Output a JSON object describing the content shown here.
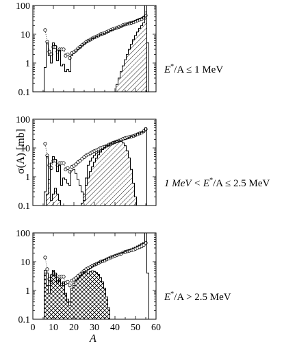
{
  "figure": {
    "ylabel": "σ(A) [mb]",
    "xlabel": "A",
    "colors": {
      "line": "#000000",
      "marker_fill": "#ffffff",
      "hatch": "#000000",
      "background": "#ffffff"
    }
  },
  "chart_data": [
    {
      "type": "line",
      "panel": "top",
      "annotation": {
        "prefix": "E",
        "sup": "*",
        "body": "/A ≤ 1 MeV"
      },
      "ylim": [
        0.1,
        100
      ],
      "yscale": "log",
      "yticks": [
        "0.1",
        "1",
        "10",
        "100"
      ],
      "xlim": [
        0,
        60
      ],
      "series": [
        {
          "style": "markers-dotted",
          "x": [
            6,
            7,
            8,
            9,
            10,
            11,
            12,
            13,
            14,
            15,
            16,
            17,
            18,
            19,
            20,
            21,
            22,
            23,
            24,
            25,
            26,
            27,
            28,
            29,
            30,
            31,
            32,
            33,
            34,
            35,
            36,
            37,
            38,
            39,
            40,
            41,
            42,
            43,
            44,
            45,
            46,
            47,
            48,
            49,
            50,
            51,
            52,
            53,
            54,
            55
          ],
          "values": [
            14,
            5.5,
            2.5,
            2.0,
            3.6,
            3.6,
            2.5,
            3.0,
            3.0,
            3.0,
            1.8,
            2.0,
            1.5,
            2.2,
            2.4,
            2.7,
            3.2,
            3.6,
            4.2,
            4.8,
            5.5,
            6.0,
            6.5,
            7.2,
            7.8,
            8.4,
            9.0,
            10,
            10.5,
            11,
            12,
            13,
            14,
            15,
            16,
            17,
            18,
            19,
            21,
            22,
            23,
            24,
            25,
            26,
            28,
            30,
            32,
            34,
            38,
            45
          ]
        },
        {
          "style": "histogram",
          "x": [
            6,
            7,
            8,
            9,
            10,
            11,
            12,
            13,
            14,
            15,
            16,
            17,
            18,
            19,
            20,
            21,
            22,
            23,
            24,
            25,
            26,
            27,
            28,
            29,
            30,
            31,
            32,
            33,
            34,
            35,
            36,
            37,
            38,
            39,
            40,
            41,
            42,
            43,
            44,
            45,
            46,
            47,
            48,
            49,
            50,
            51,
            52,
            53,
            54,
            55,
            56
          ],
          "values": [
            0.7,
            5,
            1.8,
            1.0,
            5,
            4,
            1.2,
            2.8,
            0.8,
            0.9,
            0.5,
            0.6,
            0.5,
            1.8,
            2.2,
            2.6,
            3.0,
            3.4,
            4.0,
            4.6,
            5.2,
            5.8,
            6.4,
            7.0,
            7.6,
            8.2,
            8.8,
            9.6,
            10.2,
            10.8,
            11.6,
            12.5,
            13.5,
            14.5,
            15.5,
            16.5,
            17.5,
            18.5,
            20,
            21.5,
            23,
            24.5,
            26,
            28,
            30,
            32,
            34,
            36,
            40,
            100,
            5
          ]
        },
        {
          "style": "hatched",
          "x": [
            40,
            41,
            42,
            43,
            44,
            45,
            46,
            47,
            48,
            49,
            50,
            51,
            52,
            53,
            54,
            55,
            56
          ],
          "values": [
            0.1,
            0.18,
            0.3,
            0.5,
            0.8,
            1.3,
            2.0,
            3.0,
            4.5,
            6.5,
            9,
            12,
            16,
            20,
            25,
            60,
            0.1
          ]
        }
      ]
    },
    {
      "type": "line",
      "panel": "middle",
      "annotation": {
        "prefix": "1 MeV < E",
        "sup": "*",
        "body": "/A ≤ 2.5 MeV"
      },
      "ylim": [
        0.1,
        100
      ],
      "yscale": "log",
      "yticks": [
        "0.1",
        "1",
        "10",
        "100"
      ],
      "xlim": [
        0,
        60
      ],
      "series": [
        {
          "style": "markers-dotted",
          "x": [
            6,
            7,
            8,
            9,
            10,
            11,
            12,
            13,
            14,
            15,
            16,
            17,
            18,
            19,
            20,
            21,
            22,
            23,
            24,
            25,
            26,
            27,
            28,
            29,
            30,
            31,
            32,
            33,
            34,
            35,
            36,
            37,
            38,
            39,
            40,
            41,
            42,
            43,
            44,
            45,
            46,
            47,
            48,
            49,
            50,
            51,
            52,
            53,
            54,
            55
          ],
          "values": [
            14,
            5.5,
            2.5,
            2.0,
            3.6,
            3.6,
            2.5,
            3.0,
            3.0,
            3.0,
            1.8,
            2.0,
            1.5,
            2.2,
            2.4,
            2.7,
            3.2,
            3.6,
            4.2,
            4.8,
            5.5,
            6.0,
            6.5,
            7.2,
            7.8,
            8.4,
            9.0,
            10,
            10.5,
            11,
            12,
            13,
            14,
            15,
            16,
            17,
            18,
            19,
            21,
            22,
            23,
            24,
            25,
            26,
            28,
            30,
            32,
            34,
            38,
            45
          ]
        },
        {
          "style": "histogram",
          "x": [
            6,
            7,
            8,
            9,
            10,
            11,
            12,
            13,
            14,
            15,
            16,
            17,
            18,
            19,
            20,
            21,
            22,
            23,
            24,
            25,
            26,
            27,
            28,
            29,
            30,
            31,
            32,
            33,
            34,
            35,
            36,
            37,
            38,
            39,
            40,
            41,
            42,
            43,
            44,
            45,
            46,
            47,
            48,
            49,
            50,
            51,
            52,
            53,
            54,
            55,
            56
          ],
          "values": [
            0.3,
            5,
            0.8,
            3.0,
            5,
            4,
            1.5,
            2.5,
            0.5,
            0.9,
            0.8,
            0.6,
            0.5,
            1.6,
            1.8,
            1.3,
            0.8,
            0.5,
            0.3,
            0.15,
            0.9,
            2.5,
            3.5,
            4.5,
            5.5,
            6.5,
            7.2,
            8.0,
            9.0,
            10,
            11,
            12,
            13,
            14,
            15,
            16,
            17,
            18,
            19,
            20,
            21,
            23,
            25,
            26,
            28,
            31,
            33,
            35,
            38,
            50,
            0.1
          ]
        },
        {
          "style": "hatched",
          "x": [
            6,
            7,
            8,
            9,
            10,
            11,
            12,
            13,
            14,
            15,
            16,
            17,
            18,
            19,
            20,
            21,
            22,
            23,
            24,
            25,
            26,
            27,
            28,
            29,
            30,
            31,
            32,
            33,
            34,
            35,
            36,
            37,
            38,
            39,
            40,
            41,
            42,
            43,
            44,
            45,
            46,
            47,
            48,
            49,
            50,
            51
          ],
          "values": [
            0.1,
            0.25,
            0.8,
            0.15,
            0.25,
            0.4,
            0.25,
            0.15,
            0.1,
            0.1,
            0.1,
            0.1,
            0.1,
            0.1,
            0.1,
            0.1,
            0.1,
            0.1,
            0.12,
            0.25,
            0.5,
            0.9,
            1.5,
            2.2,
            3.2,
            4.4,
            5.8,
            7.2,
            8.8,
            10.5,
            12,
            13,
            14.5,
            16,
            17,
            18,
            18,
            17,
            15,
            12,
            8,
            4.5,
            1.8,
            0.6,
            0.2,
            0.1
          ]
        }
      ]
    },
    {
      "type": "line",
      "panel": "bottom",
      "annotation": {
        "prefix": "E",
        "sup": "*",
        "body": "/A > 2.5 MeV"
      },
      "ylim": [
        0.1,
        100
      ],
      "yscale": "log",
      "yticks": [
        "0.1",
        "1",
        "10",
        "100"
      ],
      "xlim": [
        0,
        60
      ],
      "xticks": [
        "0",
        "10",
        "20",
        "30",
        "40",
        "50",
        "60"
      ],
      "series": [
        {
          "style": "markers-dotted",
          "x": [
            6,
            7,
            8,
            9,
            10,
            11,
            12,
            13,
            14,
            15,
            16,
            17,
            18,
            19,
            20,
            21,
            22,
            23,
            24,
            25,
            26,
            27,
            28,
            29,
            30,
            31,
            32,
            33,
            34,
            35,
            36,
            37,
            38,
            39,
            40,
            41,
            42,
            43,
            44,
            45,
            46,
            47,
            48,
            49,
            50,
            51,
            52,
            53,
            54,
            55
          ],
          "values": [
            14,
            5.5,
            2.5,
            2.0,
            3.6,
            3.6,
            2.5,
            3.0,
            3.0,
            3.0,
            1.8,
            2.0,
            1.5,
            2.2,
            2.4,
            2.7,
            3.2,
            3.6,
            4.2,
            4.8,
            5.5,
            6.0,
            6.5,
            7.2,
            7.8,
            8.4,
            9.0,
            10,
            10.5,
            11,
            12,
            13,
            14,
            15,
            16,
            17,
            18,
            19,
            21,
            22,
            23,
            24,
            25,
            26,
            28,
            30,
            32,
            34,
            38,
            45
          ]
        },
        {
          "style": "histogram",
          "x": [
            6,
            7,
            8,
            9,
            10,
            11,
            12,
            13,
            14,
            15,
            16,
            17,
            18,
            19,
            20,
            21,
            22,
            23,
            24,
            25,
            26,
            27,
            28,
            29,
            30,
            31,
            32,
            33,
            34,
            35,
            36,
            37,
            38,
            39,
            40,
            41,
            42,
            43,
            44,
            45,
            46,
            47,
            48,
            49,
            50,
            51,
            52,
            53,
            54,
            55,
            56
          ],
          "values": [
            5,
            4,
            1.5,
            3.5,
            5,
            4,
            2,
            2.5,
            1.8,
            2,
            0.8,
            0.5,
            0.4,
            1.2,
            1.8,
            2.2,
            2.6,
            3,
            3.5,
            4,
            4.6,
            5.2,
            6,
            6.8,
            7.6,
            8.4,
            9.2,
            10,
            10.8,
            11.6,
            12.5,
            13.5,
            14.5,
            15.5,
            16.5,
            17.5,
            18.5,
            19.5,
            21,
            22.5,
            24,
            26,
            28,
            30,
            32,
            35,
            38,
            42,
            46,
            100,
            4
          ]
        },
        {
          "style": "crosshatched",
          "x": [
            6,
            7,
            8,
            9,
            10,
            11,
            12,
            13,
            14,
            15,
            16,
            17,
            18,
            19,
            20,
            21,
            22,
            23,
            24,
            25,
            26,
            27,
            28,
            29,
            30,
            31,
            32,
            33,
            34,
            35,
            36,
            37,
            38
          ],
          "values": [
            4,
            1.5,
            0.8,
            3.5,
            4.5,
            3.5,
            1.8,
            2.2,
            1.5,
            1.8,
            0.7,
            0.4,
            0.3,
            1.0,
            1.5,
            2.0,
            2.6,
            3.4,
            4.2,
            4.5,
            4.2,
            3.8,
            4.5,
            4.8,
            4.6,
            4.2,
            3.6,
            2.8,
            2.0,
            1.2,
            0.6,
            0.25,
            0.1
          ]
        }
      ]
    }
  ]
}
